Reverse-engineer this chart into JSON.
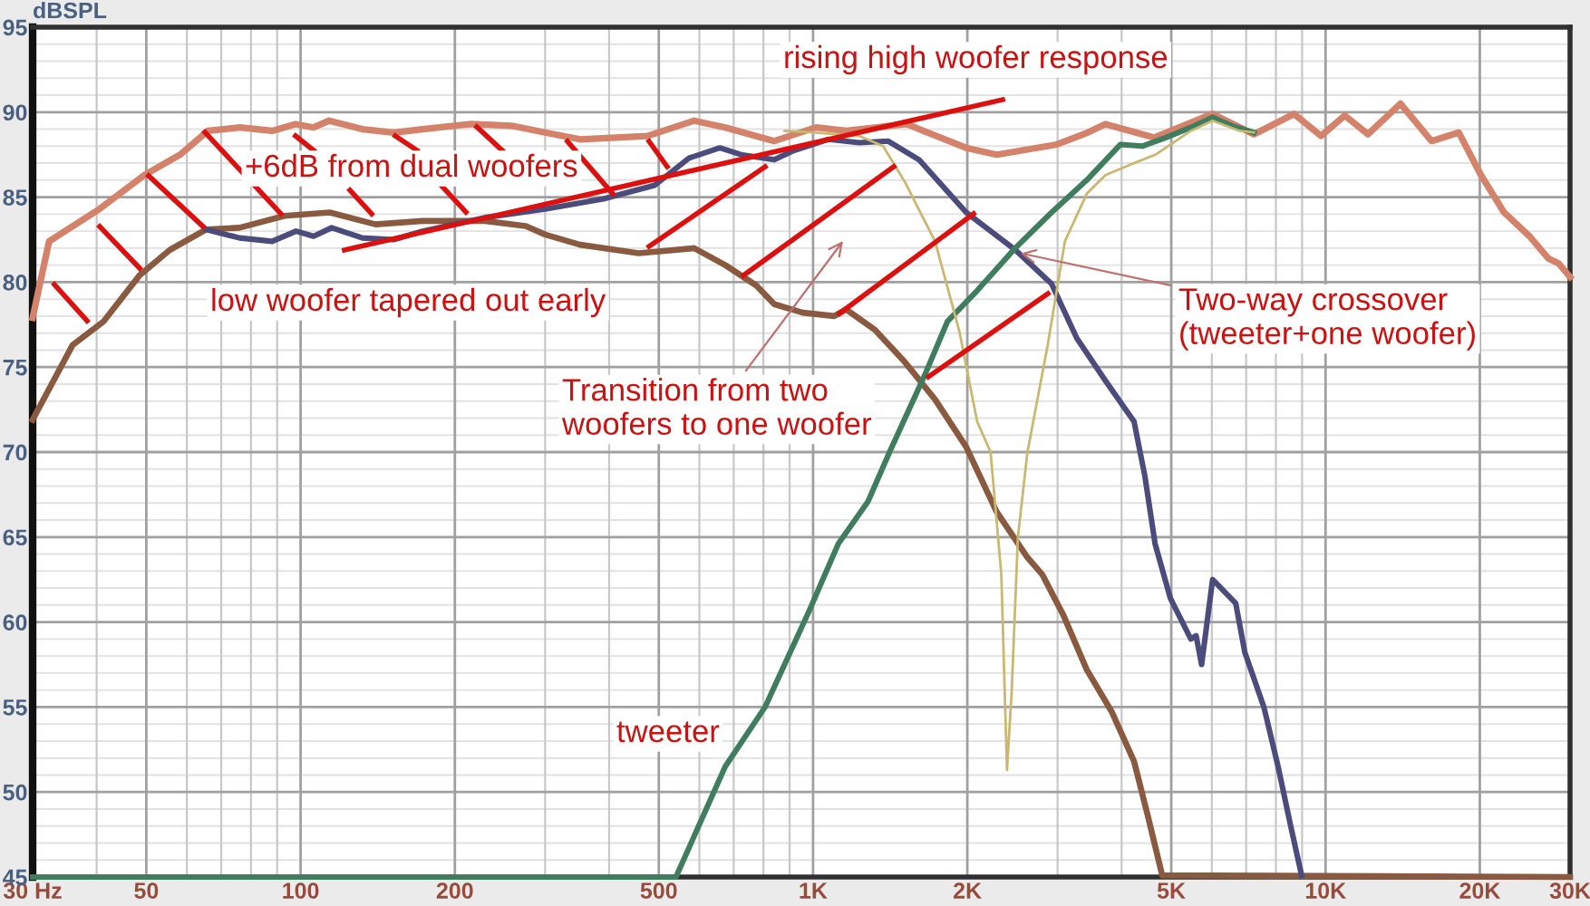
{
  "chart_data": {
    "type": "line",
    "ylabel": "dBSPL",
    "log": "x",
    "grid": true,
    "marker": "none",
    "line_style": "solid",
    "xlim": [
      30,
      30000
    ],
    "ylim": [
      45,
      95
    ],
    "xticks": [
      {
        "value": 30,
        "label": "30 Hz"
      },
      50,
      100,
      200,
      500,
      {
        "value": 1000,
        "label": "1K"
      },
      {
        "value": 2000,
        "label": "2K"
      },
      {
        "value": 5000,
        "label": "5K"
      },
      {
        "value": 10000,
        "label": "10K"
      },
      {
        "value": 20000,
        "label": "20K"
      },
      {
        "value": 30000,
        "label": "30K"
      }
    ],
    "yticks": [
      45,
      50,
      55,
      60,
      65,
      70,
      75,
      80,
      85,
      90,
      95
    ],
    "series": [
      {
        "color": "#d4826a",
        "x": [
          30,
          32.3,
          40.5,
          49.6,
          58.2,
          65.9,
          76.1,
          88,
          97.8,
          106,
          113.7,
          132,
          152,
          173,
          215,
          258,
          300,
          351,
          475,
          586,
          674,
          840,
          1013,
          1161,
          1522,
          1989,
          2283,
          2990,
          3434,
          3720,
          4630,
          6020,
          7250,
          8680,
          9800,
          10900,
          12100,
          14000,
          16100,
          18200,
          20100,
          22300,
          25000,
          27200,
          28500,
          30000
        ],
        "values": [
          77.9,
          82.4,
          84.3,
          86.3,
          87.5,
          88.9,
          89.1,
          88.9,
          89.3,
          89.1,
          89.5,
          89.0,
          88.8,
          89.0,
          89.3,
          89.2,
          88.8,
          88.4,
          88.6,
          89.5,
          89.1,
          88.3,
          89.1,
          88.9,
          89.3,
          87.9,
          87.5,
          88.1,
          88.8,
          89.3,
          88.5,
          89.9,
          88.7,
          89.9,
          88.6,
          89.8,
          88.7,
          90.5,
          88.3,
          88.8,
          86.3,
          84.1,
          82.7,
          81.4,
          81.1,
          80.3
        ]
      },
      {
        "color": "#8a5a40",
        "x": [
          30,
          35.9,
          41.3,
          48.5,
          55.6,
          65.4,
          76,
          93,
          114,
          140,
          173,
          229,
          275,
          300,
          351,
          457,
          586,
          674,
          775,
          840,
          955,
          1100,
          1160,
          1320,
          1510,
          1730,
          1990,
          2280,
          2620,
          2800,
          3080,
          3420,
          3830,
          4230,
          4500,
          4800,
          30000
        ],
        "values": [
          71.9,
          76.3,
          77.7,
          80.4,
          81.9,
          83.1,
          83.2,
          83.9,
          84.1,
          83.4,
          83.6,
          83.6,
          83.3,
          82.8,
          82.2,
          81.7,
          82.0,
          81.0,
          79.8,
          78.7,
          78.2,
          78.0,
          78.4,
          77.2,
          75.3,
          73.1,
          70.3,
          66.5,
          63.8,
          62.8,
          60.4,
          57.2,
          54.7,
          51.8,
          48.6,
          45.1,
          45
        ]
      },
      {
        "color": "#4c4c7c",
        "x": [
          65.4,
          76,
          88,
          98,
          106,
          115,
          132,
          152,
          173,
          229,
          300,
          390,
          491,
          573,
          658,
          723,
          840,
          910,
          1070,
          1230,
          1400,
          1610,
          1990,
          2480,
          2920,
          3270,
          3720,
          4230,
          4440,
          4650,
          4980,
          5460,
          5590,
          5730,
          6020,
          6680,
          6960,
          7580,
          8080,
          8550,
          8980
        ],
        "values": [
          83.1,
          82.6,
          82.4,
          83.0,
          82.7,
          83.2,
          82.6,
          82.5,
          83.0,
          83.8,
          84.3,
          84.9,
          85.7,
          87.3,
          87.9,
          87.5,
          87.2,
          87.7,
          88.4,
          88.2,
          88.3,
          87.2,
          84.1,
          81.9,
          79.9,
          76.7,
          74.2,
          71.8,
          68.6,
          64.6,
          61.4,
          59.0,
          59.2,
          57.5,
          62.5,
          61.1,
          58.2,
          55.0,
          51.5,
          48.0,
          45.1
        ]
      },
      {
        "color": "#3f7d5e",
        "x": [
          30,
          540,
          674,
          806,
          984,
          1120,
          1280,
          1410,
          1650,
          1830,
          2090,
          2480,
          2920,
          3420,
          3980,
          4390,
          4880,
          5460,
          6020,
          6560,
          7250
        ],
        "values": [
          45,
          45,
          51.5,
          55.0,
          60.7,
          64.6,
          67.1,
          70.0,
          74.5,
          77.7,
          79.5,
          82.0,
          84.1,
          86.0,
          88.1,
          88.0,
          88.5,
          89.1,
          89.7,
          89.2,
          88.8
        ]
      },
      {
        "color": "#c8b870",
        "x": [
          880,
          1013,
          1230,
          1370,
          1510,
          1730,
          1930,
          2090,
          2220,
          2330,
          2390,
          2440,
          2510,
          2620,
          2870,
          3100,
          3420,
          3720,
          4230,
          4660,
          5460,
          6020,
          6800,
          7250
        ],
        "values": [
          88.9,
          88.8,
          88.6,
          88.0,
          85.9,
          82.4,
          77.1,
          71.8,
          70.0,
          62.8,
          51.3,
          55.8,
          65.0,
          70.0,
          76.3,
          82.4,
          85.2,
          86.3,
          87.0,
          87.5,
          88.9,
          89.5,
          88.9,
          88.8
        ]
      }
    ],
    "annotations": [
      "rising high woofer response",
      "+6dB from dual woofers",
      "low woofer tapered out early",
      "Transition from two\nwoofers to one woofer",
      {
        "text": "Two-way crossover\n(tweeter+one woofer)",
        "x": 2540,
        "y": 81.7
      },
      "tweeter"
    ]
  }
}
